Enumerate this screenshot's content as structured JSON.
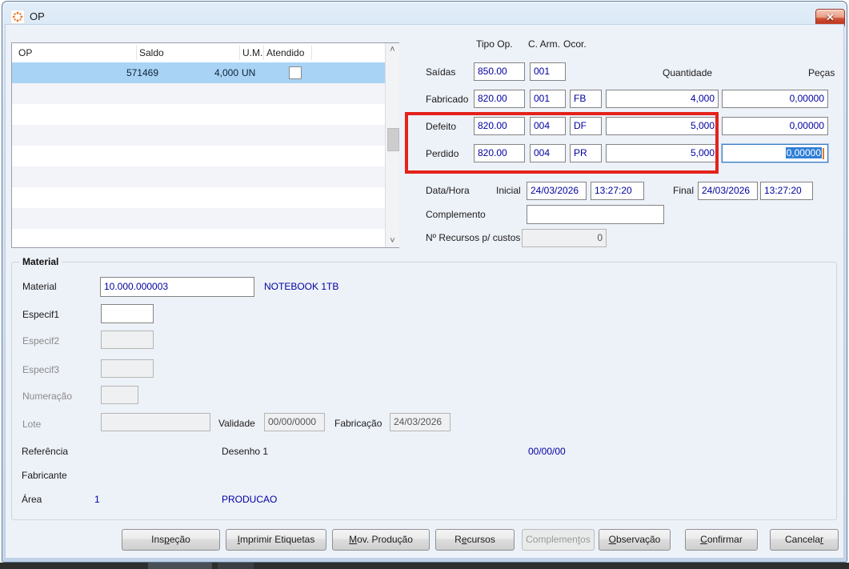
{
  "window": {
    "title": "OP"
  },
  "icons": {
    "close": "✕",
    "scroll_up": "˄",
    "scroll_down": "˅",
    "app": "orange-sparkle"
  },
  "colors": {
    "value_text": "#0000a0",
    "selected_row": "#a9d3f5",
    "selection_bg": "#2e7fd6",
    "selection_caret": "#e0762f",
    "annotation_red": "#e3221b"
  },
  "op_list": {
    "headers": {
      "op": "OP",
      "saldo": "Saldo",
      "um": "U.M.",
      "atendido": "Atendido"
    },
    "row": {
      "op": "571469",
      "saldo": "4,000",
      "um": "UN",
      "atendido_checked": false
    }
  },
  "form": {
    "headers": {
      "tipo_op": "Tipo Op.",
      "c_arm": "C. Arm.",
      "ocor": "Ocor.",
      "quantidade": "Quantidade",
      "pecas": "Peças"
    },
    "saidas": {
      "label": "Saídas",
      "tipo_op": "850.00",
      "c_arm": "001"
    },
    "fabricado": {
      "label": "Fabricado",
      "tipo_op": "820.00",
      "c_arm": "001",
      "ocor": "FB",
      "quantidade": "4,000",
      "pecas": "0,00000"
    },
    "defeito": {
      "label": "Defeito",
      "tipo_op": "820.00",
      "c_arm": "004",
      "ocor": "DF",
      "quantidade": "5,000",
      "pecas": "0,00000"
    },
    "perdido": {
      "label": "Perdido",
      "tipo_op": "820.00",
      "c_arm": "004",
      "ocor": "PR",
      "quantidade": "5,000",
      "pecas_selected": "0,00000"
    },
    "data_hora": {
      "label": "Data/Hora",
      "inicial_label": "Inicial",
      "inicial_date": "24/03/2026",
      "inicial_time": "13:27:20",
      "final_label": "Final",
      "final_date": "24/03/2026",
      "final_time": "13:27:20"
    },
    "complemento": {
      "label": "Complemento",
      "value": ""
    },
    "num_recursos": {
      "label": "Nº Recursos p/ custos",
      "value": "0"
    }
  },
  "material": {
    "group_title": "Material",
    "material": {
      "label": "Material",
      "code": "10.000.000003",
      "description": "NOTEBOOK 1TB"
    },
    "especif1": {
      "label": "Especif1",
      "value": ""
    },
    "especif2": {
      "label": "Especif2",
      "value": ""
    },
    "especif3": {
      "label": "Especif3",
      "value": ""
    },
    "numeracao": {
      "label": "Numeração",
      "value": ""
    },
    "lote": {
      "label": "Lote",
      "value": ""
    },
    "validade": {
      "label": "Validade",
      "value": "00/00/0000"
    },
    "fabricacao": {
      "label": "Fabricação",
      "value": "24/03/2026"
    },
    "referencia": {
      "label": "Referência",
      "desenho": "Desenho 1",
      "data": "00/00/00"
    },
    "fabricante": {
      "label": "Fabricante"
    },
    "area": {
      "label": "Área",
      "code": "1",
      "name": "PRODUCAO"
    }
  },
  "footer_buttons": [
    {
      "text": "Inspeção",
      "u": 3,
      "disabled": false
    },
    {
      "text": "Imprimir Etiquetas",
      "u": 0,
      "disabled": false
    },
    {
      "text": "Mov. Produção",
      "u": 0,
      "disabled": false
    },
    {
      "text": "Recursos",
      "u": 1,
      "disabled": false
    },
    {
      "text": "Complementos",
      "u": 9,
      "disabled": true
    },
    {
      "text": "Observação",
      "u": 0,
      "disabled": false
    },
    {
      "text": "Confirmar",
      "u": 0,
      "disabled": false
    },
    {
      "text": "Cancelar",
      "u": 7,
      "disabled": false
    }
  ],
  "annotation": {
    "shape": "red-rectangle",
    "color": "#e3221b"
  }
}
